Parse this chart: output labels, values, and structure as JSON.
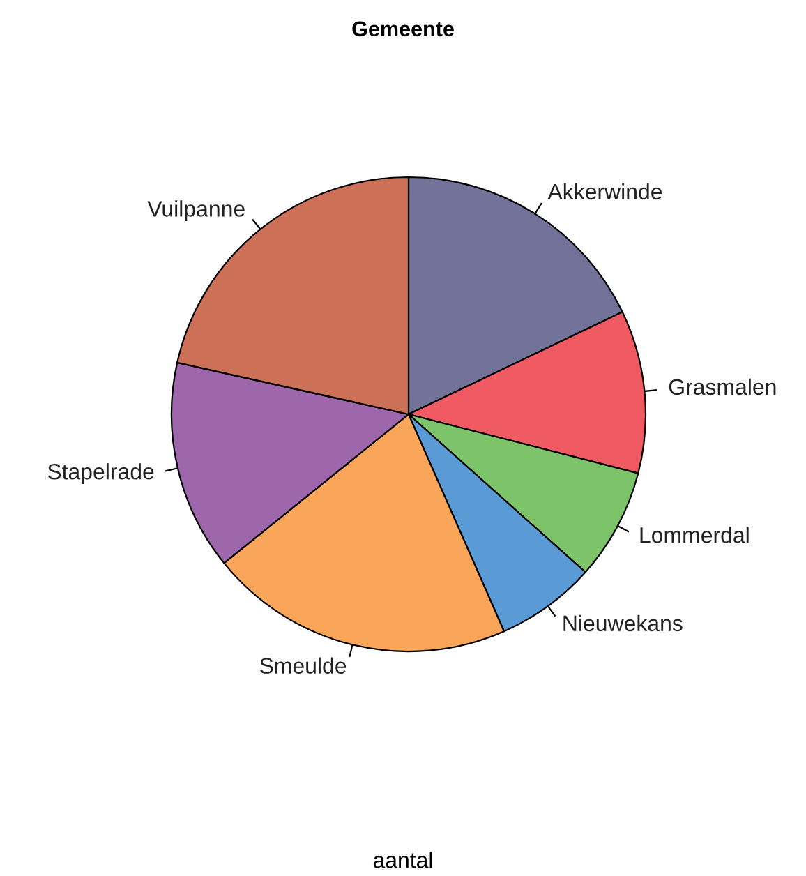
{
  "chart_data": {
    "type": "pie",
    "title": "Gemeente",
    "xlabel": "aantal",
    "categories": [
      "Akkerwinde",
      "Grasmalen",
      "Lommerdal",
      "Nieuwekans",
      "Smeulde",
      "Stapelrade",
      "Vuilpanne"
    ],
    "values": [
      17.9,
      11.1,
      7.6,
      6.8,
      20.8,
      14.3,
      21.5
    ],
    "colors": [
      "#737399",
      "#f05a63",
      "#7cc36a",
      "#5b9bd5",
      "#f9a65a",
      "#9e66ab",
      "#cd7058"
    ],
    "legend": false
  }
}
